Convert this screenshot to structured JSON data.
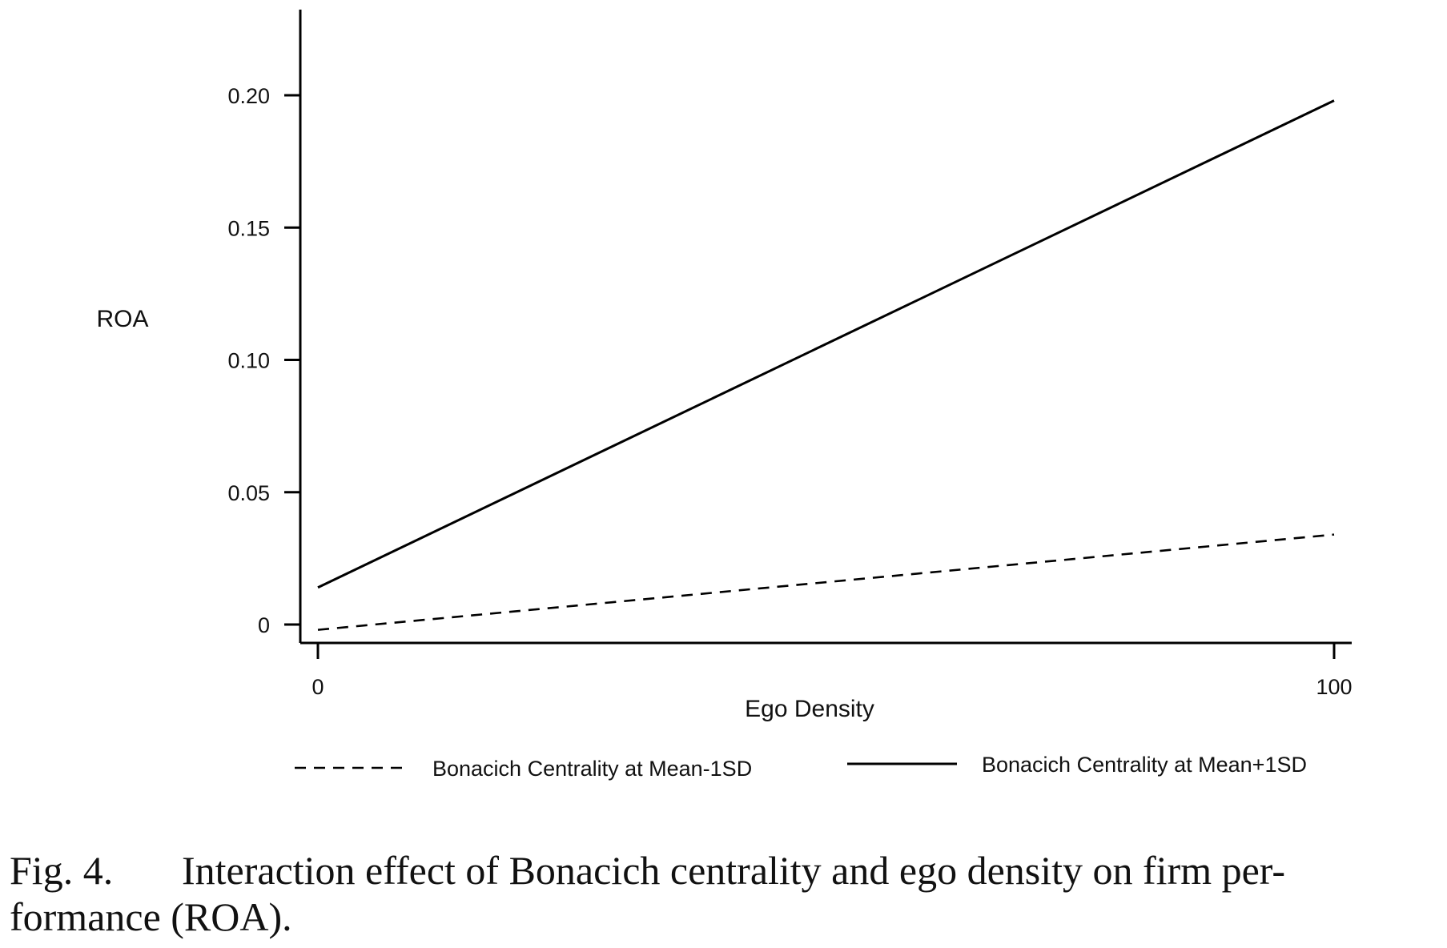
{
  "chart_data": {
    "type": "line",
    "title": "",
    "xlabel": "Ego Density",
    "ylabel": "ROA",
    "xlim": [
      0,
      100
    ],
    "ylim": [
      0,
      0.2
    ],
    "x_ticks": [
      "0",
      "100"
    ],
    "y_ticks": [
      "0",
      "0.05",
      "0.10",
      "0.15",
      "0.20"
    ],
    "grid": false,
    "legend_position": "bottom",
    "series": [
      {
        "name": "Bonacich Centrality at Mean-1SD",
        "style": "dashed",
        "color": "#000000",
        "x": [
          0,
          100
        ],
        "y": [
          -0.002,
          0.034
        ]
      },
      {
        "name": "Bonacich Centrality at Mean+1SD",
        "style": "solid",
        "color": "#000000",
        "x": [
          0,
          100
        ],
        "y": [
          0.014,
          0.198
        ]
      }
    ]
  },
  "caption": {
    "number": "Fig. 4.",
    "line1": "Interaction effect of Bonacich centrality and ego density on firm per-",
    "line2": "formance (ROA)."
  }
}
